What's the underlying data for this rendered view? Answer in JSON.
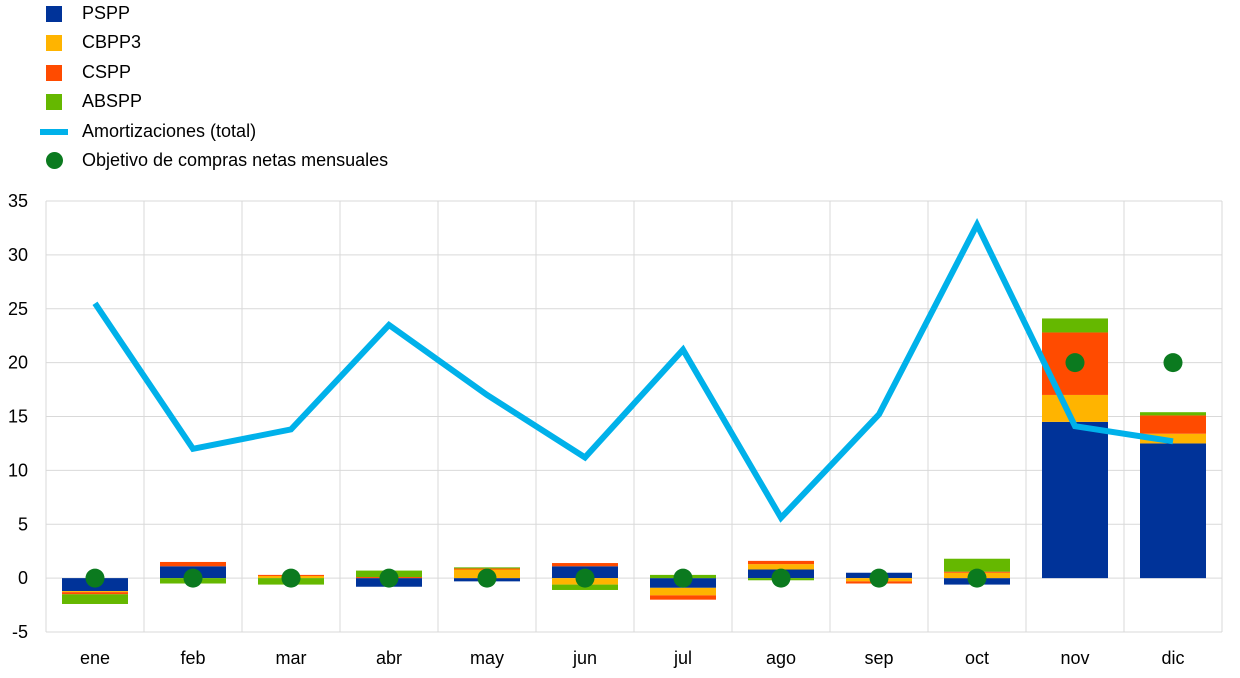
{
  "chart_data": {
    "type": "bar",
    "categories": [
      "ene",
      "feb",
      "mar",
      "abr",
      "may",
      "jun",
      "jul",
      "ago",
      "sep",
      "oct",
      "nov",
      "dic"
    ],
    "ylim": [
      -5,
      35
    ],
    "yticks": [
      "-5",
      "0",
      "5",
      "10",
      "15",
      "20",
      "25",
      "30",
      "35"
    ],
    "grid": true,
    "legend_position": "top-left",
    "series": [
      {
        "name": "PSPP",
        "kind": "bar",
        "color": "#003399",
        "values": [
          -1.2,
          1.1,
          0.0,
          -0.8,
          -0.3,
          1.1,
          -0.9,
          0.8,
          0.5,
          -0.6,
          14.5,
          12.5
        ]
      },
      {
        "name": "CBPP3",
        "kind": "bar",
        "color": "#FFB400",
        "values": [
          -0.1,
          0.0,
          0.2,
          0.0,
          0.8,
          -0.6,
          -0.7,
          0.5,
          -0.3,
          0.5,
          2.5,
          0.9
        ]
      },
      {
        "name": "CSPP",
        "kind": "bar",
        "color": "#FF4B00",
        "values": [
          -0.2,
          0.4,
          0.1,
          0.1,
          0.1,
          0.3,
          -0.4,
          0.3,
          -0.2,
          0.1,
          5.8,
          1.7
        ]
      },
      {
        "name": "ABSPP",
        "kind": "bar",
        "color": "#65B800",
        "values": [
          -0.9,
          -0.5,
          -0.6,
          0.6,
          0.1,
          -0.5,
          0.3,
          -0.2,
          0.0,
          1.2,
          1.3,
          0.3
        ]
      },
      {
        "name": "Amortizaciones (total)",
        "kind": "line",
        "color": "#00B1EA",
        "values": [
          25.5,
          12.0,
          13.8,
          23.5,
          17.0,
          11.2,
          21.2,
          5.6,
          15.2,
          32.8,
          14.1,
          12.7
        ]
      },
      {
        "name": "Objetivo de compras netas mensuales",
        "kind": "dot",
        "color": "#0B7A1F",
        "values": [
          0,
          0,
          0,
          0,
          0,
          0,
          0,
          0,
          0,
          0,
          20,
          20
        ]
      }
    ]
  }
}
